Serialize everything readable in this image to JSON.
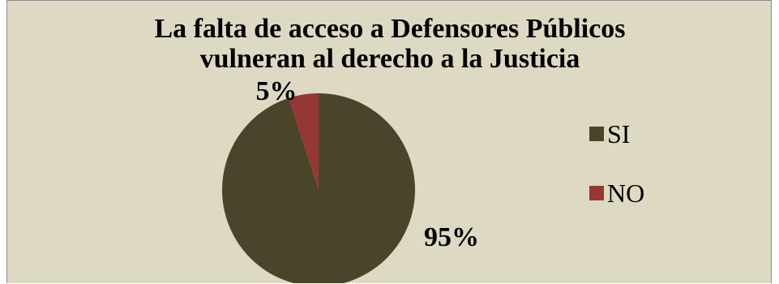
{
  "chart_data": {
    "type": "pie",
    "title_lines": [
      "La falta de acceso a Defensores Públicos",
      "vulneran al derecho a la Justicia"
    ],
    "categories": [
      "SI",
      "NO"
    ],
    "values": [
      95,
      5
    ],
    "data_labels": [
      "95%",
      "5%"
    ],
    "colors": [
      "#4a452a",
      "#953735"
    ],
    "legend_position": "right"
  }
}
